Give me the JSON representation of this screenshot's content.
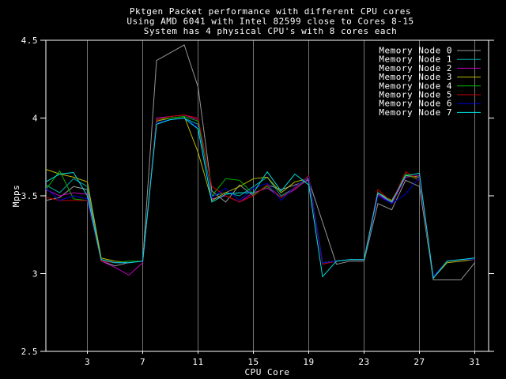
{
  "title_lines": [
    "Pktgen Packet performance with different CPU cores",
    "Using AMD 6041 with Intel 82599 close to Cores 8-15",
    "System has 4 physical CPU's with 8 cores each"
  ],
  "colors": {
    "background": "#000000",
    "border": "#ffffff",
    "gridline": "#757575",
    "text": "#ffffff"
  },
  "chart_data": {
    "type": "line",
    "title": "Pktgen Packet performance with different CPU cores",
    "subtitle1": "Using AMD 6041 with Intel 82599 close to Cores 8-15",
    "subtitle2": "System has 4 physical CPU's with 8 cores each",
    "xlabel": "CPU Core",
    "ylabel": "Mpps",
    "xlim": [
      0,
      32
    ],
    "ylim": [
      2.5,
      4.5
    ],
    "xticks": [
      3,
      7,
      11,
      15,
      19,
      23,
      27,
      31
    ],
    "yticks": [
      2.5,
      3,
      3.5,
      4,
      4.5
    ],
    "ytick_labels": [
      "2.5",
      "3",
      "3.5",
      "4",
      "4.5"
    ],
    "grid": "vertical-only",
    "legend_position": "top-right-inside",
    "x": [
      0,
      1,
      2,
      3,
      4,
      5,
      6,
      7,
      8,
      9,
      10,
      11,
      12,
      13,
      14,
      15,
      16,
      17,
      18,
      19,
      20,
      21,
      22,
      23,
      24,
      25,
      26,
      27,
      28,
      29,
      30,
      31
    ],
    "series": [
      {
        "name": "Memory Node 0",
        "color": "#969696",
        "values": [
          3.47,
          3.49,
          3.56,
          3.54,
          3.08,
          3.05,
          3.07,
          3.08,
          4.37,
          4.42,
          4.47,
          4.2,
          3.53,
          3.46,
          3.57,
          3.5,
          3.57,
          3.54,
          3.57,
          3.6,
          3.33,
          3.06,
          3.08,
          3.08,
          3.45,
          3.41,
          3.6,
          3.56,
          2.96,
          2.96,
          2.96,
          3.07
        ]
      },
      {
        "name": "Memory Node 1",
        "color": "#00a8a8",
        "values": [
          3.57,
          3.52,
          3.61,
          3.56,
          3.09,
          3.07,
          3.07,
          3.08,
          3.97,
          3.99,
          4.0,
          3.96,
          3.5,
          3.52,
          3.5,
          3.56,
          3.62,
          3.5,
          3.55,
          3.62,
          3.07,
          3.08,
          3.09,
          3.09,
          3.51,
          3.46,
          3.62,
          3.63,
          2.98,
          3.08,
          3.09,
          3.09
        ]
      },
      {
        "name": "Memory Node 2",
        "color": "#bf00bf",
        "values": [
          3.54,
          3.5,
          3.52,
          3.51,
          3.08,
          3.04,
          2.99,
          3.07,
          4.0,
          4.01,
          4.02,
          3.99,
          3.48,
          3.5,
          3.46,
          3.52,
          3.55,
          3.49,
          3.54,
          3.61,
          3.06,
          3.08,
          3.09,
          3.09,
          3.51,
          3.45,
          3.62,
          3.63,
          2.97,
          3.08,
          3.09,
          3.09
        ]
      },
      {
        "name": "Memory Node 3",
        "color": "#b8b800",
        "values": [
          3.67,
          3.64,
          3.62,
          3.59,
          3.1,
          3.08,
          3.07,
          3.08,
          3.98,
          4.0,
          4.01,
          3.78,
          3.47,
          3.52,
          3.56,
          3.61,
          3.62,
          3.52,
          3.59,
          3.61,
          3.07,
          3.08,
          3.09,
          3.09,
          3.52,
          3.47,
          3.63,
          3.62,
          2.97,
          3.07,
          3.08,
          3.09
        ]
      },
      {
        "name": "Memory Node 4",
        "color": "#00ad00",
        "values": [
          3.54,
          3.66,
          3.48,
          3.47,
          3.09,
          3.07,
          3.08,
          3.08,
          3.99,
          4.0,
          4.01,
          3.98,
          3.5,
          3.61,
          3.6,
          3.51,
          3.56,
          3.49,
          3.55,
          3.62,
          3.07,
          3.08,
          3.09,
          3.09,
          3.52,
          3.46,
          3.64,
          3.6,
          2.97,
          3.08,
          3.09,
          3.09
        ]
      },
      {
        "name": "Memory Node 5",
        "color": "#c00000",
        "values": [
          3.49,
          3.47,
          3.47,
          3.47,
          3.08,
          3.07,
          3.07,
          3.08,
          3.99,
          4.01,
          4.02,
          4.0,
          3.56,
          3.5,
          3.46,
          3.5,
          3.57,
          3.49,
          3.55,
          3.63,
          3.06,
          3.08,
          3.09,
          3.09,
          3.54,
          3.46,
          3.655,
          3.6,
          2.97,
          3.08,
          3.09,
          3.09
        ]
      },
      {
        "name": "Memory Node 6",
        "color": "#0000d0",
        "values": [
          3.55,
          3.47,
          3.5,
          3.48,
          3.09,
          3.07,
          3.07,
          3.08,
          3.97,
          3.99,
          4.0,
          3.94,
          3.49,
          3.55,
          3.47,
          3.55,
          3.58,
          3.47,
          3.56,
          3.62,
          3.07,
          3.08,
          3.09,
          3.09,
          3.5,
          3.45,
          3.51,
          3.62,
          2.98,
          3.08,
          3.09,
          3.09
        ]
      },
      {
        "name": "Memory Node 7",
        "color": "#00e0e0",
        "values": [
          3.59,
          3.64,
          3.65,
          3.5,
          3.09,
          3.07,
          3.07,
          3.08,
          3.96,
          3.99,
          4.0,
          3.93,
          3.46,
          3.51,
          3.52,
          3.52,
          3.655,
          3.53,
          3.64,
          3.57,
          2.98,
          3.08,
          3.09,
          3.09,
          3.52,
          3.46,
          3.63,
          3.645,
          2.97,
          3.08,
          3.09,
          3.1
        ]
      }
    ]
  }
}
